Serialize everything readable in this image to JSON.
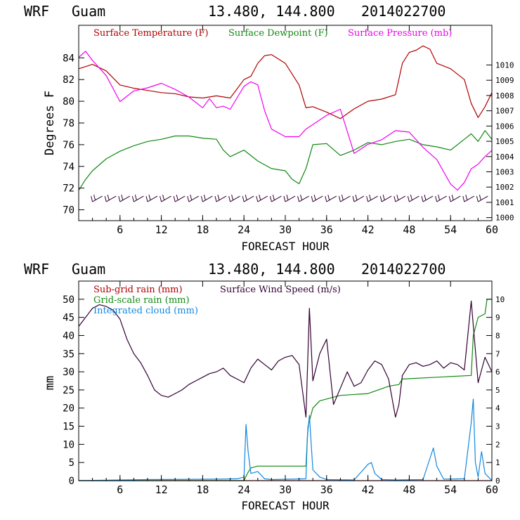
{
  "header": {
    "model": "WRF",
    "location": "Guam",
    "coords": "13.480, 144.800",
    "run": "2014022700"
  },
  "colors": {
    "temperature": "#b00000",
    "dewpoint": "#118811",
    "pressure": "#ee00ee",
    "wind": "#330033",
    "subgrid": "#b00000",
    "gridscale": "#118811",
    "cloud": "#1188dd",
    "axis": "#000000"
  },
  "chart_data": [
    {
      "type": "line",
      "title": "",
      "xlabel": "FORECAST HOUR",
      "ylabel": "Degrees F",
      "xlim": [
        0,
        60
      ],
      "ylim": [
        69,
        87
      ],
      "x_ticks": [
        6,
        12,
        18,
        24,
        30,
        36,
        42,
        48,
        54,
        60
      ],
      "y_ticks": [
        70,
        72,
        74,
        76,
        78,
        80,
        82,
        84
      ],
      "y2_label": "",
      "y2lim": [
        999.8,
        1012.6
      ],
      "y2_ticks": [
        1000,
        1001,
        1002,
        1003,
        1004,
        1005,
        1006,
        1007,
        1008,
        1009,
        1010
      ],
      "legend": [
        "Surface Temperature (F)",
        "Surface Dewpoint (F)",
        "Surface Pressure (mb)"
      ],
      "legend_position": "top",
      "series": [
        {
          "name": "Surface Temperature (F)",
          "axis": "left",
          "x": [
            0,
            2,
            4,
            6,
            8,
            10,
            12,
            14,
            16,
            18,
            20,
            22,
            24,
            25,
            26,
            27,
            28,
            30,
            32,
            33,
            34,
            36,
            38,
            40,
            42,
            44,
            46,
            47,
            48,
            49,
            50,
            51,
            52,
            54,
            56,
            57,
            58,
            59,
            60
          ],
          "values": [
            83,
            83.4,
            82.8,
            81.5,
            81.2,
            81.0,
            80.8,
            80.7,
            80.4,
            80.3,
            80.5,
            80.3,
            82.0,
            82.3,
            83.5,
            84.2,
            84.3,
            83.5,
            81.5,
            79.4,
            79.5,
            79.0,
            78.4,
            79.3,
            80.0,
            80.2,
            80.6,
            83.5,
            84.5,
            84.7,
            85.1,
            84.8,
            83.5,
            83.0,
            82.0,
            79.8,
            78.5,
            79.5,
            80.8
          ]
        },
        {
          "name": "Surface Dewpoint (F)",
          "axis": "left",
          "x": [
            0,
            1,
            2,
            4,
            6,
            8,
            10,
            12,
            14,
            16,
            18,
            20,
            21,
            22,
            24,
            26,
            28,
            30,
            31,
            32,
            33,
            34,
            36,
            38,
            40,
            42,
            44,
            46,
            48,
            50,
            52,
            54,
            56,
            57,
            58,
            59,
            60
          ],
          "values": [
            71.8,
            72.8,
            73.6,
            74.7,
            75.4,
            75.9,
            76.3,
            76.5,
            76.8,
            76.8,
            76.6,
            76.5,
            75.5,
            74.9,
            75.5,
            74.5,
            73.8,
            73.6,
            72.8,
            72.4,
            73.8,
            76.0,
            76.1,
            75.0,
            75.5,
            76.2,
            76.0,
            76.3,
            76.5,
            76.0,
            75.8,
            75.5,
            76.5,
            77.0,
            76.3,
            77.3,
            76.5
          ]
        },
        {
          "name": "Surface Pressure (mb)",
          "axis": "right",
          "x": [
            0,
            1,
            2,
            4,
            6,
            8,
            10,
            12,
            14,
            16,
            18,
            19,
            20,
            21,
            22,
            24,
            25,
            26,
            27,
            28,
            30,
            32,
            33,
            34,
            36,
            38,
            40,
            42,
            44,
            46,
            48,
            50,
            52,
            54,
            55,
            56,
            57,
            58,
            59,
            60
          ],
          "values": [
            1010.5,
            1010.9,
            1010.3,
            1009.3,
            1007.6,
            1008.3,
            1008.5,
            1008.8,
            1008.4,
            1007.9,
            1007.2,
            1007.8,
            1007.2,
            1007.3,
            1007.1,
            1008.6,
            1008.9,
            1008.7,
            1007.0,
            1005.8,
            1005.3,
            1005.3,
            1005.8,
            1006.1,
            1006.7,
            1007.1,
            1004.2,
            1004.8,
            1005.1,
            1005.7,
            1005.6,
            1004.6,
            1003.8,
            1002.2,
            1001.8,
            1002.3,
            1003.2,
            1003.5,
            1004.0,
            1004.4
          ]
        },
        {
          "name": "Wind Barbs",
          "axis": "left",
          "x": [
            2,
            4,
            6,
            8,
            10,
            12,
            14,
            16,
            18,
            20,
            22,
            24,
            26,
            28,
            30,
            32,
            34,
            36,
            38,
            40,
            42,
            44,
            46,
            48,
            50,
            52,
            54,
            56,
            58
          ],
          "values": [
            71,
            71,
            71,
            71,
            71,
            71,
            71,
            71,
            71,
            71,
            71,
            71,
            71,
            71,
            71,
            71,
            71,
            71,
            71,
            71,
            71,
            71,
            71,
            71,
            71,
            71,
            71,
            71,
            71
          ]
        }
      ]
    },
    {
      "type": "line",
      "title": "",
      "xlabel": "FORECAST HOUR",
      "ylabel": "mm",
      "xlim": [
        0,
        60
      ],
      "ylim": [
        0,
        55
      ],
      "x_ticks": [
        6,
        12,
        18,
        24,
        30,
        36,
        42,
        48,
        54,
        60
      ],
      "y_ticks": [
        0,
        5,
        10,
        15,
        20,
        25,
        30,
        35,
        40,
        45,
        50
      ],
      "y2lim": [
        0,
        11
      ],
      "y2_ticks": [
        0,
        1,
        2,
        3,
        4,
        5,
        6,
        7,
        8,
        9,
        10
      ],
      "legend": [
        "Sub-grid rain (mm)",
        "Grid-scale rain (mm)",
        "Integrated cloud (mm)",
        "Surface Wind Speed (m/s)"
      ],
      "legend_position": "top-left",
      "series": [
        {
          "name": "Sub-grid rain (mm)",
          "axis": "left",
          "x": [
            0,
            60
          ],
          "values": [
            0,
            0
          ]
        },
        {
          "name": "Grid-scale rain (mm)",
          "axis": "left",
          "x": [
            0,
            24,
            24.5,
            25,
            26,
            33,
            33.3,
            34,
            35,
            37,
            38,
            42,
            45,
            46.5,
            47,
            52,
            57,
            57.3,
            58,
            59,
            59.3,
            60
          ],
          "values": [
            0,
            0,
            2,
            3.5,
            4,
            4,
            15,
            20,
            22,
            23,
            23.5,
            24,
            26,
            26.5,
            28,
            28.5,
            29,
            40,
            45,
            46,
            50,
            50
          ]
        },
        {
          "name": "Integrated cloud (mm)",
          "axis": "left",
          "x": [
            0,
            10,
            20,
            23,
            24,
            24.3,
            24.6,
            25,
            26,
            27,
            28,
            33,
            33.2,
            33.5,
            34,
            35,
            36,
            40,
            42,
            42.5,
            43,
            44,
            46,
            50,
            51.5,
            52,
            53,
            56,
            57,
            57.3,
            57.6,
            58,
            58.5,
            59,
            60
          ],
          "values": [
            0,
            0.3,
            0.4,
            0.5,
            1,
            15.5,
            8,
            2,
            2.5,
            0.5,
            0.3,
            0.5,
            12,
            18,
            3,
            1,
            0.3,
            0.2,
            4.5,
            5,
            2,
            0.3,
            0.2,
            0.3,
            9,
            4,
            0.4,
            0.5,
            16,
            22.5,
            5,
            1,
            8,
            2,
            0
          ]
        },
        {
          "name": "Surface Wind Speed (m/s)",
          "axis": "right",
          "x": [
            0,
            1,
            2,
            3,
            4,
            5,
            6,
            7,
            8,
            9,
            10,
            11,
            12,
            13,
            14,
            15,
            16,
            17,
            18,
            19,
            20,
            21,
            22,
            23,
            24,
            25,
            26,
            27,
            28,
            29,
            30,
            31,
            32,
            33,
            33.5,
            34,
            35,
            36,
            37,
            38,
            39,
            40,
            41,
            42,
            43,
            44,
            45,
            46,
            46.5,
            47,
            48,
            49,
            50,
            51,
            52,
            53,
            54,
            55,
            56,
            57,
            58,
            59,
            60
          ],
          "values": [
            8.5,
            9.0,
            9.5,
            9.7,
            9.6,
            9.4,
            8.9,
            7.8,
            7.0,
            6.5,
            5.8,
            5.0,
            4.7,
            4.6,
            4.8,
            5.0,
            5.3,
            5.5,
            5.7,
            5.9,
            6.0,
            6.2,
            5.8,
            5.6,
            5.4,
            6.2,
            6.7,
            6.4,
            6.1,
            6.6,
            6.8,
            6.9,
            6.4,
            3.5,
            9.5,
            5.5,
            7.0,
            7.8,
            4.2,
            5.1,
            6.0,
            5.2,
            5.4,
            6.1,
            6.6,
            6.4,
            5.6,
            3.5,
            4.2,
            5.8,
            6.4,
            6.5,
            6.3,
            6.4,
            6.6,
            6.2,
            6.5,
            6.4,
            6.1,
            9.9,
            5.4,
            6.8,
            6.0
          ]
        }
      ]
    }
  ]
}
